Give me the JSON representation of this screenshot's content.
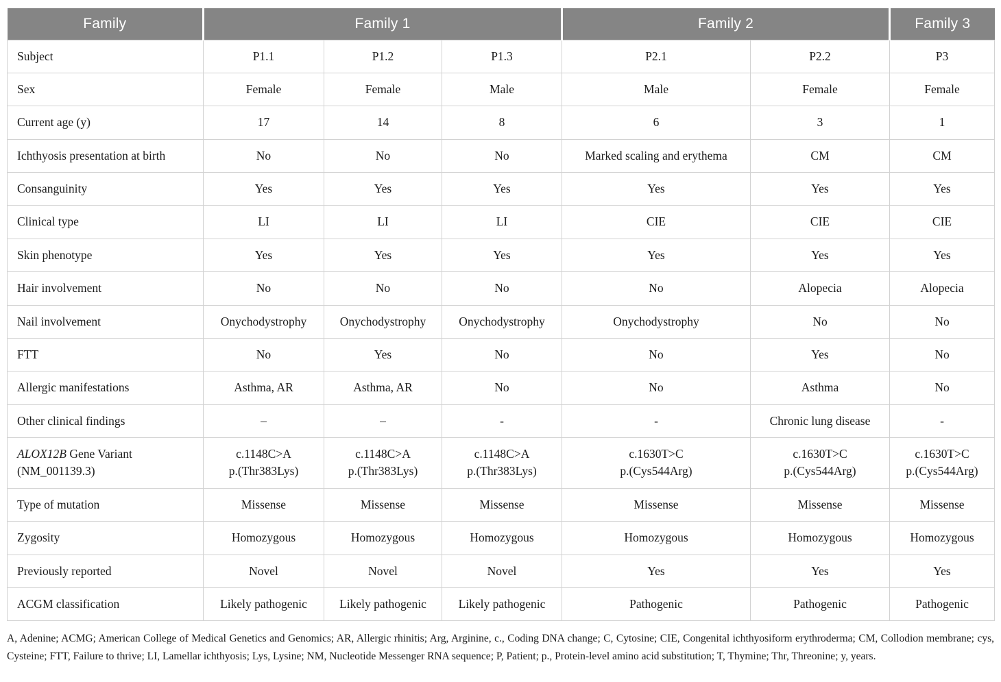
{
  "table": {
    "header": {
      "family": "Family",
      "family1": "Family 1",
      "family2": "Family 2",
      "family3": "Family 3"
    },
    "rows": [
      {
        "label": "Subject",
        "values": [
          "P1.1",
          "P1.2",
          "P1.3",
          "P2.1",
          "P2.2",
          "P3"
        ]
      },
      {
        "label": "Sex",
        "values": [
          "Female",
          "Female",
          "Male",
          "Male",
          "Female",
          "Female"
        ]
      },
      {
        "label": "Current age (y)",
        "values": [
          "17",
          "14",
          "8",
          "6",
          "3",
          "1"
        ]
      },
      {
        "label": "Ichthyosis presentation at birth",
        "values": [
          "No",
          "No",
          "No",
          "Marked scaling and erythema",
          "CM",
          "CM"
        ]
      },
      {
        "label": "Consanguinity",
        "values": [
          "Yes",
          "Yes",
          "Yes",
          "Yes",
          "Yes",
          "Yes"
        ]
      },
      {
        "label": "Clinical type",
        "values": [
          "LI",
          "LI",
          "LI",
          "CIE",
          "CIE",
          "CIE"
        ]
      },
      {
        "label": "Skin phenotype",
        "values": [
          "Yes",
          "Yes",
          "Yes",
          "Yes",
          "Yes",
          "Yes"
        ]
      },
      {
        "label": "Hair involvement",
        "values": [
          "No",
          "No",
          "No",
          "No",
          "Alopecia",
          "Alopecia"
        ]
      },
      {
        "label": "Nail involvement",
        "values": [
          "Onychodystrophy",
          "Onychodystrophy",
          "Onychodystrophy",
          "Onychodystrophy",
          "No",
          "No"
        ]
      },
      {
        "label": "FTT",
        "values": [
          "No",
          "Yes",
          "No",
          "No",
          "Yes",
          "No"
        ]
      },
      {
        "label": "Allergic manifestations",
        "values": [
          "Asthma, AR",
          "Asthma, AR",
          "No",
          "No",
          "Asthma",
          "No"
        ]
      },
      {
        "label": "Other clinical findings",
        "values": [
          "–",
          "–",
          "-",
          "-",
          "Chronic lung disease",
          "-"
        ]
      },
      {
        "label_parts": {
          "italic": "ALOX12B",
          "rest": " Gene Variant",
          "line2": "(NM_001139.3)"
        },
        "values": [
          [
            "c.1148C>A",
            "p.(Thr383Lys)"
          ],
          [
            "c.1148C>A",
            "p.(Thr383Lys)"
          ],
          [
            "c.1148C>A",
            "p.(Thr383Lys)"
          ],
          [
            "c.1630T>C",
            "p.(Cys544Arg)"
          ],
          [
            "c.1630T>C",
            "p.(Cys544Arg)"
          ],
          [
            "c.1630T>C",
            "p.(Cys544Arg)"
          ]
        ]
      },
      {
        "label": "Type of mutation",
        "values": [
          "Missense",
          "Missense",
          "Missense",
          "Missense",
          "Missense",
          "Missense"
        ]
      },
      {
        "label": "Zygosity",
        "values": [
          "Homozygous",
          "Homozygous",
          "Homozygous",
          "Homozygous",
          "Homozygous",
          "Homozygous"
        ]
      },
      {
        "label": "Previously reported",
        "values": [
          "Novel",
          "Novel",
          "Novel",
          "Yes",
          "Yes",
          "Yes"
        ]
      },
      {
        "label": "ACGM classification",
        "values": [
          "Likely pathogenic",
          "Likely pathogenic",
          "Likely pathogenic",
          "Pathogenic",
          "Pathogenic",
          "Pathogenic"
        ]
      }
    ]
  },
  "footnote": "A, Adenine; ACMG; American College of Medical Genetics and Genomics; AR, Allergic rhinitis; Arg, Arginine, c., Coding DNA change; C, Cytosine; CIE, Congenital ichthyosiform erythroderma; CM, Collodion membrane; cys, Cysteine; FTT, Failure to thrive; LI, Lamellar ichthyosis; Lys, Lysine; NM, Nucleotide Messenger RNA sequence; P, Patient; p., Protein-level amino acid substitution; T, Thymine; Thr, Threonine; y, years.",
  "colors": {
    "header_bg": "#858585",
    "header_text": "#ffffff",
    "border": "#d2d2d2",
    "body_text": "#1c1c1c"
  }
}
